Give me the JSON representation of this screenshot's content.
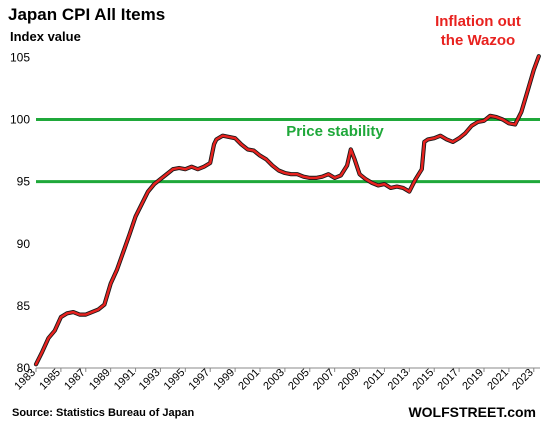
{
  "chart_data": {
    "type": "line",
    "title": "Japan  CPI All Items",
    "ylabel": "Index value",
    "xlim": [
      1983,
      2023.5
    ],
    "ylim": [
      80,
      106
    ],
    "y_ticks": [
      "80",
      "85",
      "90",
      "95",
      "100",
      "105"
    ],
    "x_ticks": [
      "1983",
      "1985",
      "1987",
      "1989",
      "1991",
      "1993",
      "1995",
      "1997",
      "1999",
      "2001",
      "2003",
      "2005",
      "2007",
      "2009",
      "2011",
      "2013",
      "2015",
      "2017",
      "2019",
      "2021",
      "2023"
    ],
    "grid": false,
    "reference_lines": [
      {
        "y": 100,
        "color": "#1fa83a"
      },
      {
        "y": 95,
        "color": "#1fa83a"
      }
    ],
    "annotations": {
      "inflation": [
        "Inflation out",
        "the Wazoo"
      ],
      "stability": "Price stability"
    },
    "source": "Source: Statistics Bureau of Japan",
    "brand": "WOLFSTREET.com",
    "series": [
      {
        "color": "#e8221f",
        "x": [
          1983.0,
          1983.5,
          1984.0,
          1984.5,
          1985.0,
          1985.5,
          1986.0,
          1986.5,
          1987.0,
          1987.5,
          1988.0,
          1988.5,
          1989.0,
          1989.5,
          1990.0,
          1990.5,
          1991.0,
          1991.5,
          1992.0,
          1992.5,
          1993.0,
          1993.5,
          1994.0,
          1994.5,
          1995.0,
          1995.5,
          1996.0,
          1996.5,
          1997.0,
          1997.3,
          1997.5,
          1998.0,
          1998.5,
          1999.0,
          1999.5,
          2000.0,
          2000.5,
          2001.0,
          2001.5,
          2002.0,
          2002.5,
          2003.0,
          2003.5,
          2004.0,
          2004.5,
          2005.0,
          2005.5,
          2006.0,
          2006.5,
          2007.0,
          2007.5,
          2008.0,
          2008.3,
          2008.6,
          2009.0,
          2009.5,
          2010.0,
          2010.5,
          2011.0,
          2011.5,
          2012.0,
          2012.5,
          2013.0,
          2013.5,
          2014.0,
          2014.2,
          2014.5,
          2015.0,
          2015.5,
          2016.0,
          2016.5,
          2017.0,
          2017.5,
          2018.0,
          2018.5,
          2019.0,
          2019.5,
          2020.0,
          2020.5,
          2021.0,
          2021.5,
          2022.0,
          2022.5,
          2023.0,
          2023.4
        ],
        "values": [
          80.3,
          81.3,
          82.4,
          83.0,
          84.1,
          84.4,
          84.5,
          84.3,
          84.3,
          84.5,
          84.7,
          85.1,
          86.8,
          87.9,
          89.3,
          90.7,
          92.2,
          93.2,
          94.2,
          94.8,
          95.2,
          95.6,
          96.0,
          96.1,
          96.0,
          96.2,
          96.0,
          96.2,
          96.5,
          98.0,
          98.4,
          98.7,
          98.6,
          98.5,
          98.0,
          97.6,
          97.5,
          97.1,
          96.8,
          96.3,
          95.9,
          95.7,
          95.6,
          95.6,
          95.4,
          95.3,
          95.3,
          95.4,
          95.6,
          95.3,
          95.5,
          96.3,
          97.6,
          96.8,
          95.6,
          95.2,
          94.9,
          94.7,
          94.8,
          94.5,
          94.6,
          94.5,
          94.2,
          95.2,
          96.0,
          98.2,
          98.4,
          98.5,
          98.7,
          98.4,
          98.2,
          98.5,
          98.9,
          99.5,
          99.8,
          99.9,
          100.3,
          100.2,
          100.0,
          99.7,
          99.6,
          100.6,
          102.3,
          104.0,
          105.1
        ]
      }
    ]
  }
}
